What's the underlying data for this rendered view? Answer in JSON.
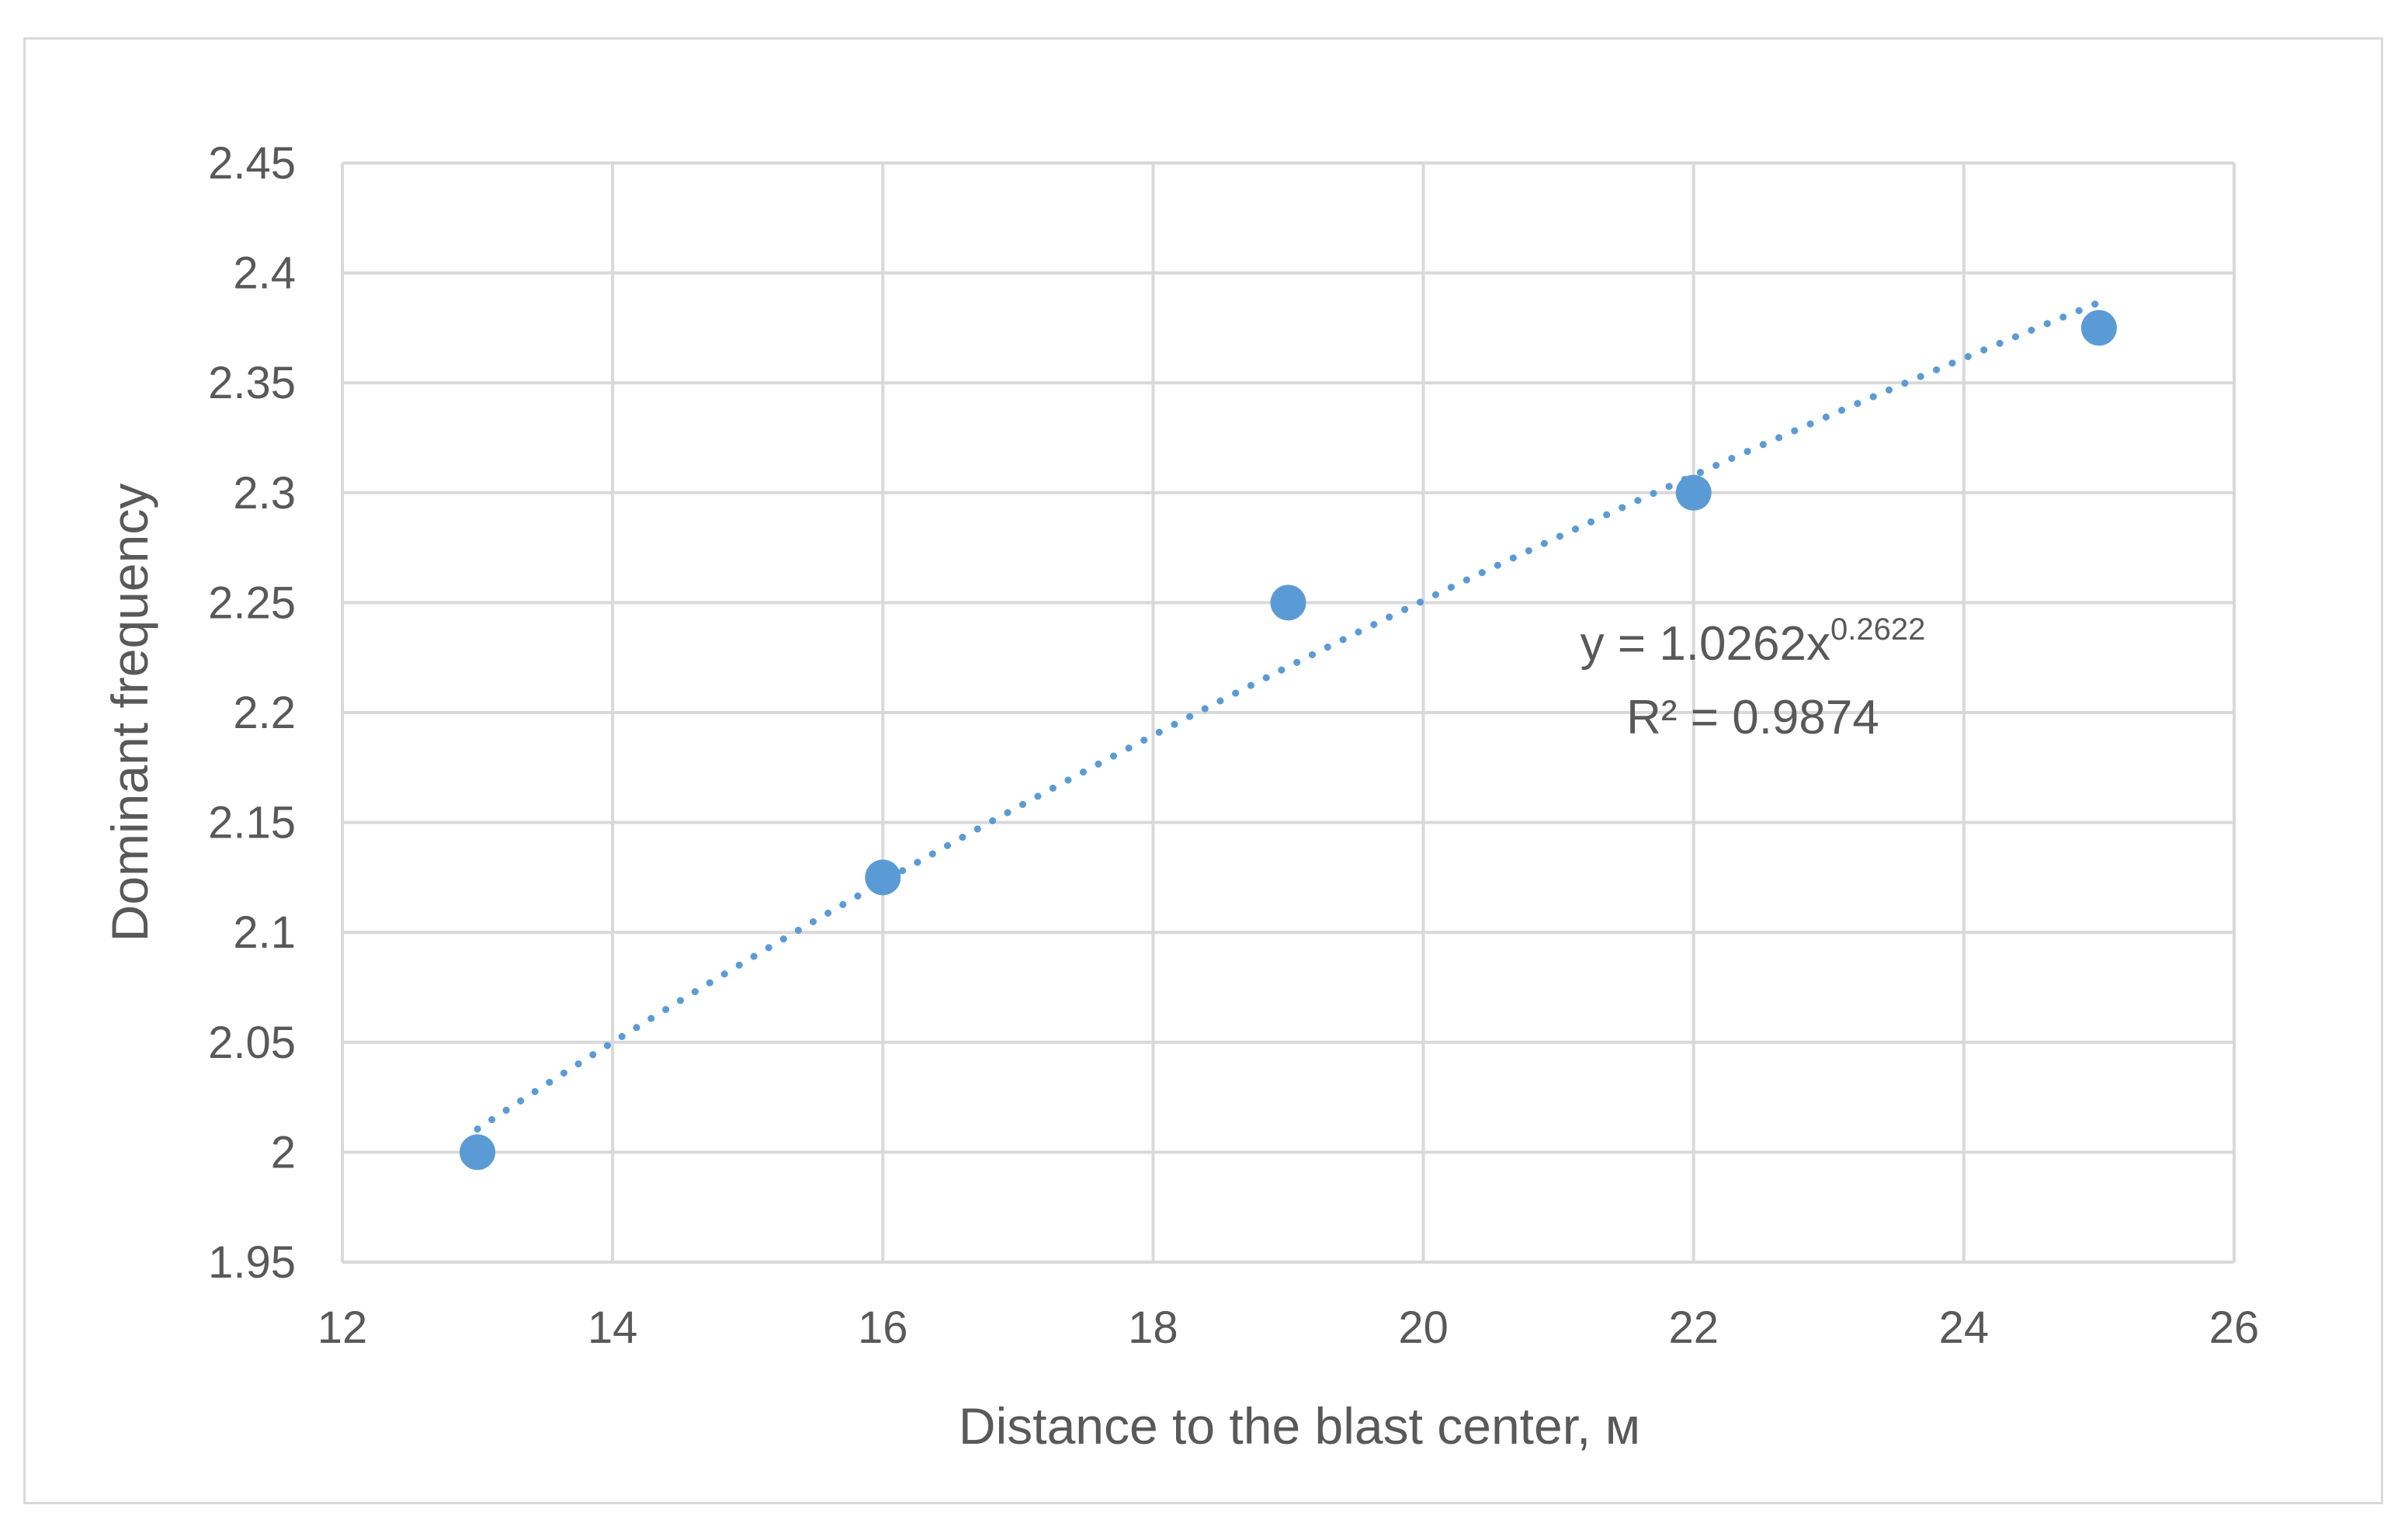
{
  "chart_data": {
    "type": "scatter",
    "title": "",
    "xlabel": "Distance to the blast center, м",
    "ylabel": "Dominant frequency",
    "xlim": [
      12,
      26
    ],
    "ylim": [
      1.95,
      2.45
    ],
    "x_ticks": [
      "12",
      "14",
      "16",
      "18",
      "20",
      "22",
      "24",
      "26"
    ],
    "y_ticks": [
      "1.95",
      "2",
      "2.05",
      "2.1",
      "2.15",
      "2.2",
      "2.25",
      "2.3",
      "2.35",
      "2.4",
      "2.45"
    ],
    "grid": true,
    "legend": "none",
    "series": [
      {
        "x": [
          13,
          16,
          19,
          22,
          25
        ],
        "y": [
          2.0,
          2.125,
          2.25,
          2.3,
          2.375
        ],
        "color": "#5b9bd5"
      }
    ],
    "trendline": {
      "type": "power",
      "a": 1.0262,
      "b": 0.2622,
      "x_range": [
        13,
        25
      ],
      "style": "dotted",
      "color": "#5b9bd5",
      "equation_base": "y = 1.0262x",
      "equation_exponent": "0.2622",
      "r_squared": "R² = 0.9874"
    }
  }
}
